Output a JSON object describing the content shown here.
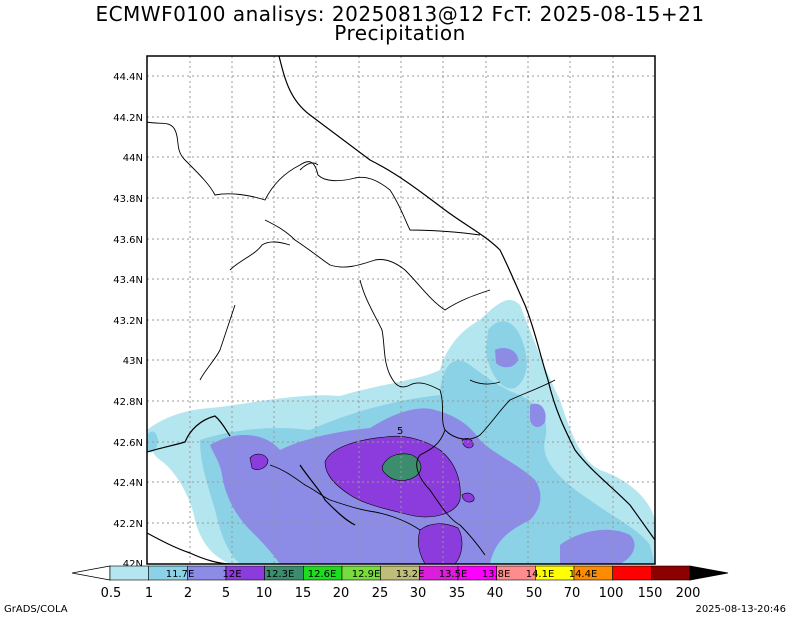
{
  "title": {
    "line1": "ECMWF0100 analisys: 20250813@12 FcT: 2025-08-15+21",
    "line2": "Precipitation"
  },
  "map": {
    "lat_labels": [
      "44.4N",
      "44.2N",
      "44N",
      "43.8N",
      "43.6N",
      "43.4N",
      "43.2N",
      "43N",
      "42.8N",
      "42.6N",
      "42.4N",
      "42.2N",
      "42N"
    ],
    "lon_labels": [
      "11.7E",
      "12E",
      "12.3E",
      "12.6E",
      "12.9E",
      "13.2E",
      "13.5E",
      "13.8E",
      "14.1E",
      "14.4E"
    ],
    "station_marker": "5"
  },
  "colorbar": {
    "ticks": [
      "0.5",
      "1",
      "2",
      "5",
      "10",
      "15",
      "20",
      "25",
      "30",
      "35",
      "40",
      "50",
      "70",
      "100",
      "150",
      "200"
    ],
    "colors": [
      "#b4e6f0",
      "#8cd2e6",
      "#8c8ce6",
      "#8c3cdc",
      "#3c8c6e",
      "#1edc1e",
      "#78dc3c",
      "#bebe78",
      "#dc1edc",
      "#ff00ff",
      "#ff8c8c",
      "#ffff00",
      "#ff8c00",
      "#ff0000",
      "#8c0000"
    ],
    "under_color": "#ffffff",
    "over_color": "#000000"
  },
  "footer": {
    "left": "GrADS/COLA",
    "right": "2025-08-13-20:46"
  }
}
